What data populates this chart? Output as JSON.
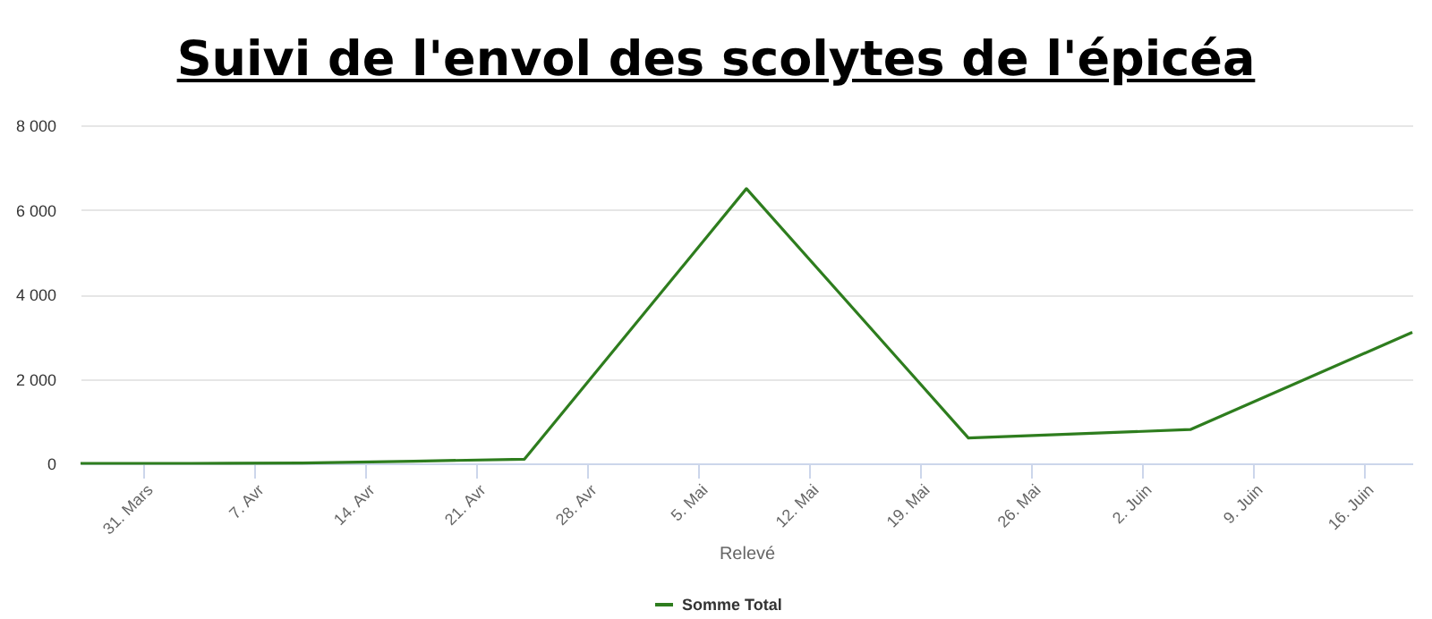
{
  "chart_data": {
    "type": "line",
    "title": "Suivi de l'envol des scolytes de l'épicéa",
    "xlabel": "Relevé",
    "x": [
      "--03-27",
      "--04-03",
      "--04-10",
      "--04-17",
      "--04-24",
      "--05-08",
      "--05-22",
      "--06-05",
      "--06-19"
    ],
    "series": [
      {
        "name": "Somme Total",
        "color": "#2e7d1e",
        "values": [
          0,
          0,
          10,
          50,
          100,
          6500,
          600,
          800,
          3100
        ]
      }
    ],
    "xlim": [
      "--03-27",
      "--06-19"
    ],
    "xticks": [
      {
        "value": "--03-31",
        "label": "31. Mars"
      },
      {
        "value": "--04-07",
        "label": "7. Avr"
      },
      {
        "value": "--04-14",
        "label": "14. Avr"
      },
      {
        "value": "--04-21",
        "label": "21. Avr"
      },
      {
        "value": "--04-28",
        "label": "28. Avr"
      },
      {
        "value": "--05-05",
        "label": "5. Mai"
      },
      {
        "value": "--05-12",
        "label": "12. Mai"
      },
      {
        "value": "--05-19",
        "label": "19. Mai"
      },
      {
        "value": "--05-26",
        "label": "26. Mai"
      },
      {
        "value": "--06-02",
        "label": "2. Juin"
      },
      {
        "value": "--06-09",
        "label": "9. Juin"
      },
      {
        "value": "--06-16",
        "label": "16. Juin"
      }
    ],
    "ylim": [
      0,
      8000
    ],
    "yticks": [
      {
        "value": 0,
        "label": "0"
      },
      {
        "value": 2000,
        "label": "2 000"
      },
      {
        "value": 4000,
        "label": "4 000"
      },
      {
        "value": 6000,
        "label": "6 000"
      },
      {
        "value": 8000,
        "label": "8 000"
      }
    ],
    "grid": "y",
    "legend": "bottom",
    "marker": "none",
    "line_style": "solid"
  }
}
